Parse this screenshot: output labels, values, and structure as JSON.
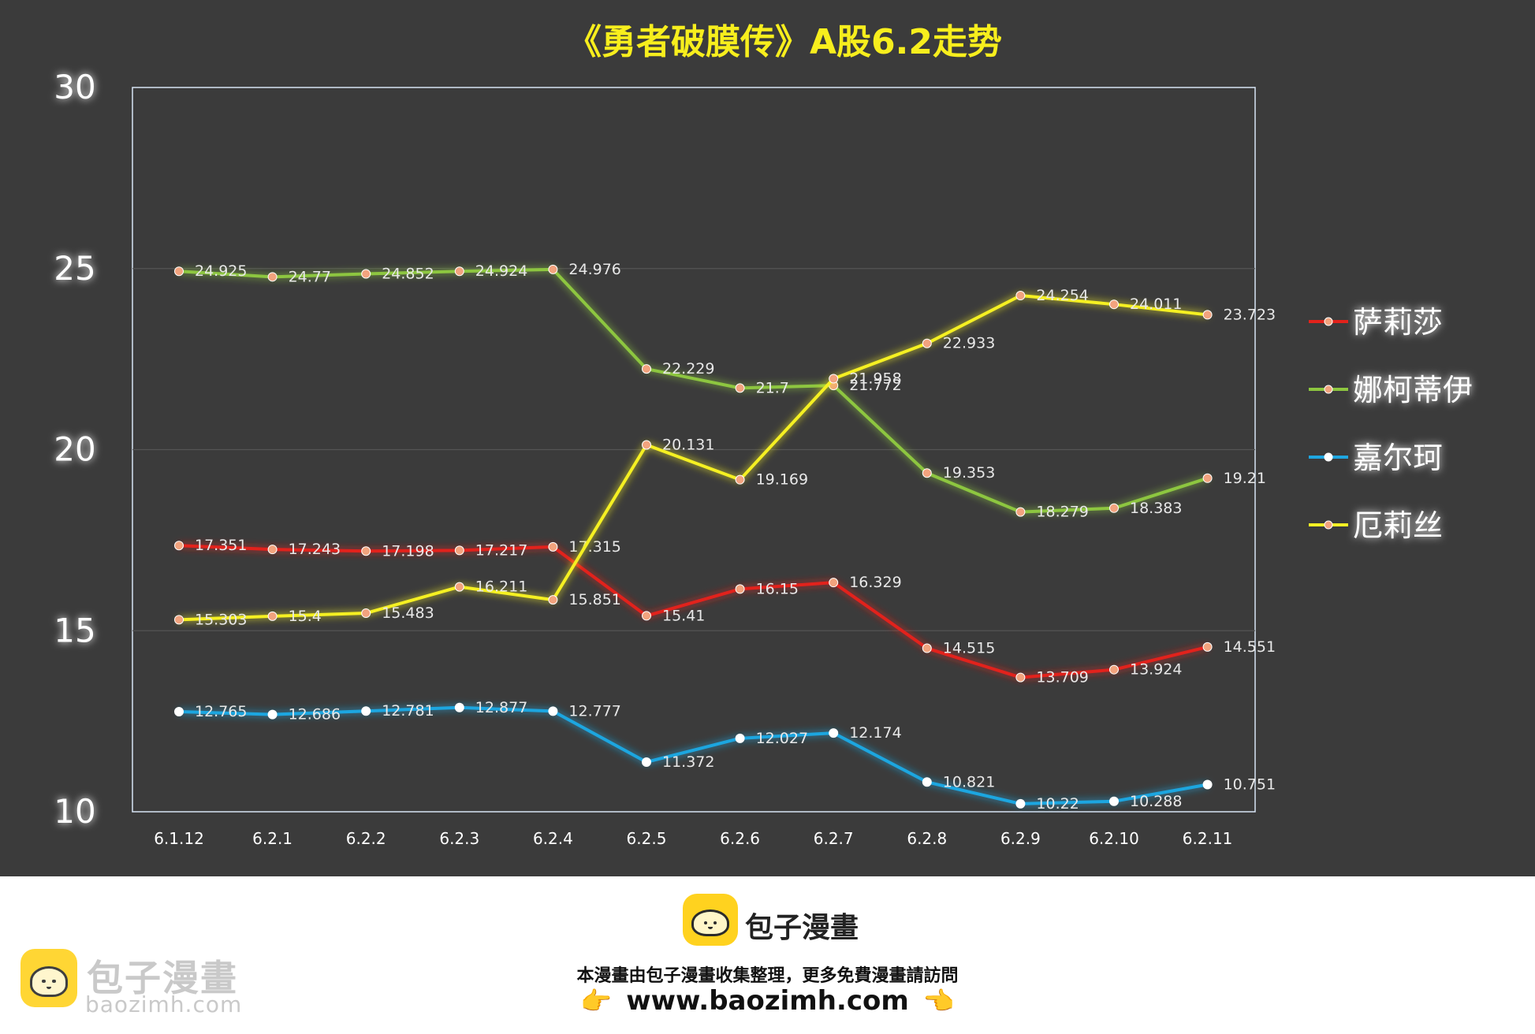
{
  "chart_data": {
    "type": "line",
    "title": "《勇者破膜传》A股6.2走势",
    "categories": [
      "6.1.12",
      "6.2.1",
      "6.2.2",
      "6.2.3",
      "6.2.4",
      "6.2.5",
      "6.2.6",
      "6.2.7",
      "6.2.8",
      "6.2.9",
      "6.2.10",
      "6.2.11"
    ],
    "ylim": [
      10,
      30
    ],
    "yticks": [
      "10",
      "15",
      "20",
      "25",
      "30"
    ],
    "grid": true,
    "legend_position": "right",
    "series": [
      {
        "name": "萨莉莎",
        "color": "#e2221b",
        "values": [
          17.351,
          17.243,
          17.198,
          17.217,
          17.315,
          15.41,
          16.15,
          16.329,
          14.515,
          13.709,
          13.924,
          14.551
        ],
        "labels": [
          "17.351",
          "17.243",
          "17.198",
          "17.217",
          "17.315",
          "15.41",
          "16.15",
          "16.329",
          "14.515",
          "13.709",
          "13.924",
          "14.551"
        ]
      },
      {
        "name": "娜柯蒂伊",
        "color": "#8dc63f",
        "values": [
          24.925,
          24.77,
          24.852,
          24.924,
          24.976,
          22.229,
          21.7,
          21.772,
          19.353,
          18.279,
          18.383,
          19.21
        ],
        "labels": [
          "24.925",
          "24.77",
          "24.852",
          "24.924",
          "24.976",
          "22.229",
          "21.7",
          "21.772",
          "19.353",
          "18.279",
          "18.383",
          "19.21"
        ]
      },
      {
        "name": "嘉尔珂",
        "color": "#1ea6e0",
        "values": [
          12.765,
          12.686,
          12.781,
          12.877,
          12.777,
          11.372,
          12.027,
          12.174,
          10.821,
          10.22,
          10.288,
          10.751
        ],
        "labels": [
          "12.765",
          "12.686",
          "12.781",
          "12.877",
          "12.777",
          "11.372",
          "12.027",
          "12.174",
          "10.821",
          "10.22",
          "10.288",
          "10.751"
        ]
      },
      {
        "name": "厄莉丝",
        "color": "#f5f024",
        "values": [
          15.303,
          15.4,
          15.483,
          16.211,
          15.851,
          20.131,
          19.169,
          21.958,
          22.933,
          24.254,
          24.011,
          23.723
        ],
        "labels": [
          "15.303",
          "15.4",
          "15.483",
          "16.211",
          "15.851",
          "20.131",
          "19.169",
          "21.958",
          "22.933",
          "24.254",
          "24.011",
          "23.723"
        ]
      }
    ]
  },
  "footer": {
    "brand": "包子漫畫",
    "notice": "本漫畫由包子漫畫收集整理，更多免費漫畫請訪問",
    "site": "www.baozimh.com",
    "hand_left": "👉",
    "hand_right": "👈",
    "watermark_name": "包子漫畫",
    "watermark_url": "baozimh.com"
  }
}
